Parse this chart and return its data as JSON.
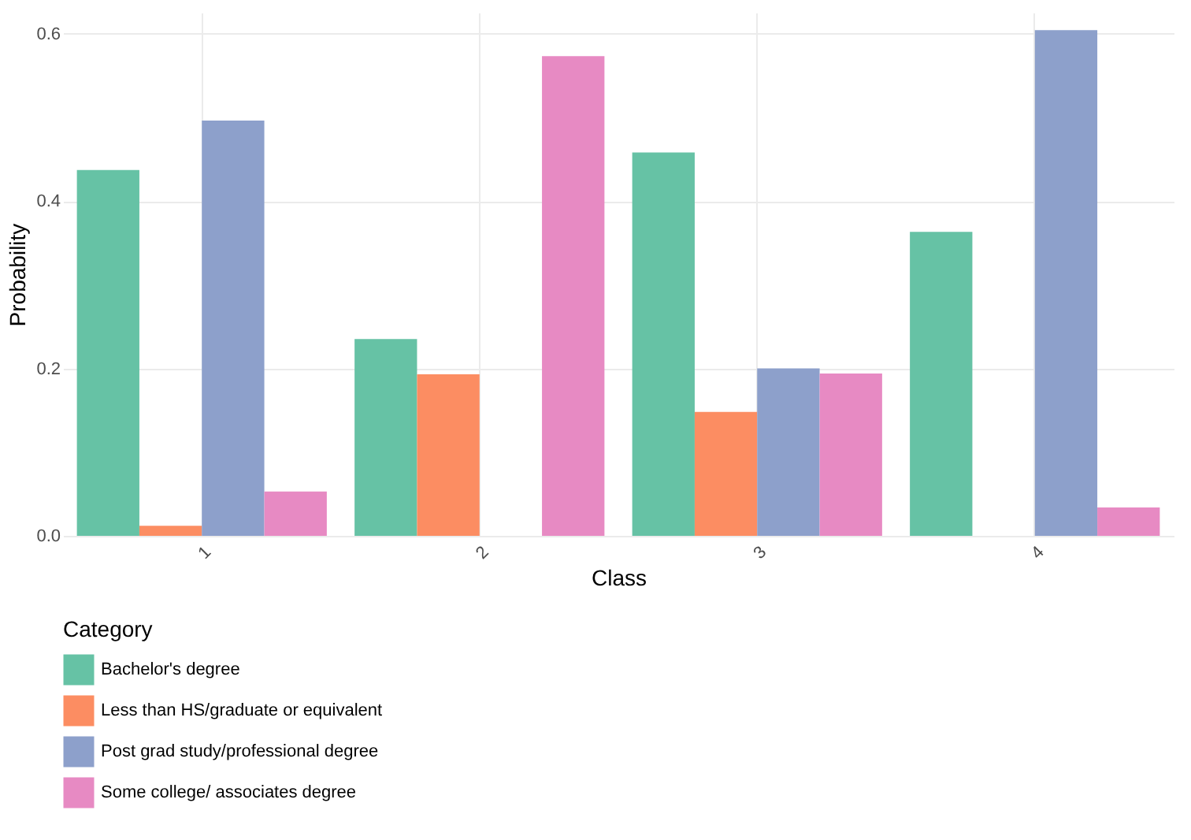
{
  "chart_data": {
    "type": "bar",
    "xlabel": "Class",
    "ylabel": "Probability",
    "legend_title": "Category",
    "categories": [
      "1",
      "2",
      "3",
      "4"
    ],
    "series": [
      {
        "name": "Bachelor's degree",
        "color": "#66c2a5",
        "values": [
          0.437,
          0.235,
          0.458,
          0.363
        ]
      },
      {
        "name": "Less than HS/graduate or equivalent",
        "color": "#fc8d62",
        "values": [
          0.012,
          0.193,
          0.148,
          null
        ]
      },
      {
        "name": "Post grad study/professional degree",
        "color": "#8da0cb",
        "values": [
          0.496,
          null,
          0.2,
          0.604
        ]
      },
      {
        "name": "Some college/ associates degree",
        "color": "#e78ac3",
        "values": [
          0.053,
          0.573,
          0.194,
          0.034
        ]
      }
    ],
    "ylim": [
      0,
      0.625
    ],
    "yticks": [
      {
        "value": 0,
        "label": "0.0"
      },
      {
        "value": 0.2,
        "label": "0.2"
      },
      {
        "value": 0.4,
        "label": "0.4"
      },
      {
        "value": 0.6,
        "label": "0.6"
      }
    ],
    "grid": true,
    "legend": "bottom"
  }
}
